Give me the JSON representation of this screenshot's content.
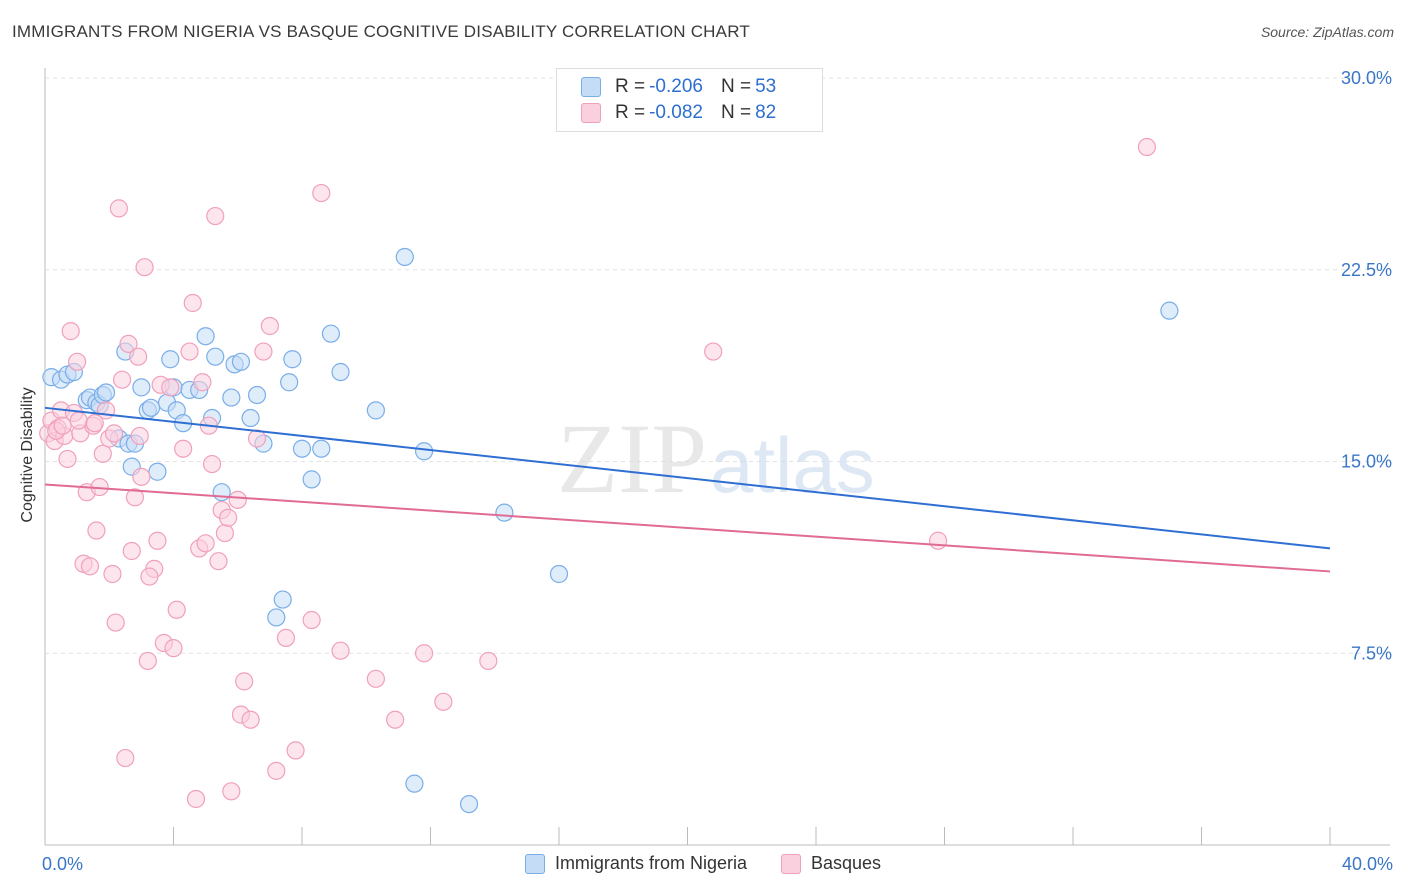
{
  "header": {
    "title": "IMMIGRANTS FROM NIGERIA VS BASQUE COGNITIVE DISABILITY CORRELATION CHART",
    "source": "Source: ZipAtlas.com"
  },
  "watermark": {
    "zip": "ZIP",
    "atlas": "atlas"
  },
  "stats_legend": {
    "rows": [
      {
        "r_label": "R =",
        "r_value": "-0.206",
        "n_label": "N =",
        "n_value": "53"
      },
      {
        "r_label": "R =",
        "r_value": "-0.082",
        "n_label": "N =",
        "n_value": "82"
      }
    ]
  },
  "chart_data": {
    "type": "scatter",
    "title": "IMMIGRANTS FROM NIGERIA VS BASQUE COGNITIVE DISABILITY CORRELATION CHART",
    "xlabel": "",
    "ylabel": "Cognitive Disability",
    "xlim": [
      0,
      40
    ],
    "ylim": [
      0,
      30
    ],
    "x_tick_labels": [
      "0.0%",
      "40.0%"
    ],
    "y_ticks": [
      7.5,
      15.0,
      22.5,
      30.0
    ],
    "y_tick_labels": [
      "7.5%",
      "15.0%",
      "22.5%",
      "30.0%"
    ],
    "grid": true,
    "legend_position": "bottom-center",
    "series": [
      {
        "name": "Immigrants from Nigeria",
        "color": "#7aaee8",
        "line_color": "#2f6fd3",
        "trend": {
          "x": [
            0,
            40
          ],
          "y": [
            17.1,
            11.6
          ]
        },
        "points": [
          [
            0.2,
            18.3
          ],
          [
            0.5,
            18.2
          ],
          [
            0.7,
            18.4
          ],
          [
            0.9,
            18.5
          ],
          [
            1.3,
            17.4
          ],
          [
            1.4,
            17.5
          ],
          [
            1.6,
            17.3
          ],
          [
            1.7,
            17.2
          ],
          [
            1.8,
            17.6
          ],
          [
            1.9,
            17.7
          ],
          [
            2.3,
            15.9
          ],
          [
            2.5,
            19.3
          ],
          [
            2.6,
            15.7
          ],
          [
            2.7,
            14.8
          ],
          [
            2.8,
            15.7
          ],
          [
            3.0,
            17.9
          ],
          [
            3.2,
            17.0
          ],
          [
            3.3,
            17.1
          ],
          [
            3.5,
            14.6
          ],
          [
            3.8,
            17.3
          ],
          [
            3.9,
            19.0
          ],
          [
            4.0,
            17.9
          ],
          [
            4.1,
            17.0
          ],
          [
            4.3,
            16.5
          ],
          [
            4.5,
            17.8
          ],
          [
            4.8,
            17.8
          ],
          [
            5.0,
            19.9
          ],
          [
            5.2,
            16.7
          ],
          [
            5.3,
            19.1
          ],
          [
            5.5,
            13.8
          ],
          [
            5.8,
            17.5
          ],
          [
            5.9,
            18.8
          ],
          [
            6.1,
            18.9
          ],
          [
            6.4,
            16.7
          ],
          [
            6.6,
            17.6
          ],
          [
            6.8,
            15.7
          ],
          [
            7.2,
            8.9
          ],
          [
            7.4,
            9.6
          ],
          [
            7.6,
            18.1
          ],
          [
            7.7,
            19.0
          ],
          [
            8.0,
            15.5
          ],
          [
            8.3,
            14.3
          ],
          [
            8.6,
            15.5
          ],
          [
            8.9,
            20.0
          ],
          [
            9.2,
            18.5
          ],
          [
            10.3,
            17.0
          ],
          [
            11.2,
            23.0
          ],
          [
            11.5,
            2.4
          ],
          [
            11.8,
            15.4
          ],
          [
            13.2,
            1.6
          ],
          [
            14.3,
            13.0
          ],
          [
            16.0,
            10.6
          ],
          [
            35.0,
            20.9
          ]
        ]
      },
      {
        "name": "Basques",
        "color": "#f0a0bb",
        "line_color": "#e06b95",
        "trend": {
          "x": [
            0,
            40
          ],
          "y": [
            14.1,
            10.7
          ]
        },
        "points": [
          [
            0.1,
            16.1
          ],
          [
            0.2,
            16.6
          ],
          [
            0.3,
            15.8
          ],
          [
            0.4,
            16.3
          ],
          [
            0.5,
            17.0
          ],
          [
            0.6,
            16.0
          ],
          [
            0.7,
            15.1
          ],
          [
            0.8,
            20.1
          ],
          [
            0.9,
            16.9
          ],
          [
            1.0,
            18.9
          ],
          [
            1.1,
            16.1
          ],
          [
            1.2,
            11.0
          ],
          [
            1.3,
            13.8
          ],
          [
            1.4,
            10.9
          ],
          [
            1.5,
            16.4
          ],
          [
            1.6,
            12.3
          ],
          [
            1.7,
            14.0
          ],
          [
            1.8,
            15.3
          ],
          [
            1.9,
            17.0
          ],
          [
            2.0,
            15.9
          ],
          [
            2.1,
            10.6
          ],
          [
            2.2,
            8.7
          ],
          [
            2.3,
            24.9
          ],
          [
            2.4,
            18.2
          ],
          [
            2.5,
            3.4
          ],
          [
            2.6,
            19.6
          ],
          [
            2.7,
            11.5
          ],
          [
            2.8,
            13.6
          ],
          [
            2.9,
            19.1
          ],
          [
            3.0,
            14.4
          ],
          [
            3.1,
            22.6
          ],
          [
            3.2,
            7.2
          ],
          [
            3.4,
            10.8
          ],
          [
            3.5,
            11.9
          ],
          [
            3.6,
            18.0
          ],
          [
            3.7,
            7.9
          ],
          [
            3.9,
            17.9
          ],
          [
            4.0,
            7.7
          ],
          [
            4.1,
            9.2
          ],
          [
            4.3,
            15.5
          ],
          [
            4.5,
            19.3
          ],
          [
            4.6,
            21.2
          ],
          [
            4.7,
            1.8
          ],
          [
            4.8,
            11.6
          ],
          [
            4.9,
            18.1
          ],
          [
            5.0,
            11.8
          ],
          [
            5.1,
            16.4
          ],
          [
            5.2,
            14.9
          ],
          [
            5.3,
            24.6
          ],
          [
            5.4,
            11.1
          ],
          [
            5.5,
            13.1
          ],
          [
            5.6,
            12.2
          ],
          [
            5.7,
            12.8
          ],
          [
            5.8,
            2.1
          ],
          [
            6.0,
            13.5
          ],
          [
            6.1,
            5.1
          ],
          [
            6.2,
            6.4
          ],
          [
            6.4,
            4.9
          ],
          [
            6.6,
            15.9
          ],
          [
            6.8,
            19.3
          ],
          [
            7.0,
            20.3
          ],
          [
            7.2,
            2.9
          ],
          [
            7.5,
            8.1
          ],
          [
            7.8,
            3.7
          ],
          [
            8.3,
            8.8
          ],
          [
            8.6,
            25.5
          ],
          [
            9.2,
            7.6
          ],
          [
            10.3,
            6.5
          ],
          [
            10.9,
            4.9
          ],
          [
            11.8,
            7.5
          ],
          [
            12.4,
            5.6
          ],
          [
            13.8,
            7.2
          ],
          [
            20.8,
            19.3
          ],
          [
            27.8,
            11.9
          ],
          [
            34.3,
            27.3
          ],
          [
            0.35,
            16.2
          ],
          [
            0.55,
            16.4
          ],
          [
            1.05,
            16.6
          ],
          [
            1.55,
            16.5
          ],
          [
            2.15,
            16.1
          ],
          [
            2.95,
            16.0
          ],
          [
            3.25,
            10.5
          ]
        ]
      }
    ]
  }
}
